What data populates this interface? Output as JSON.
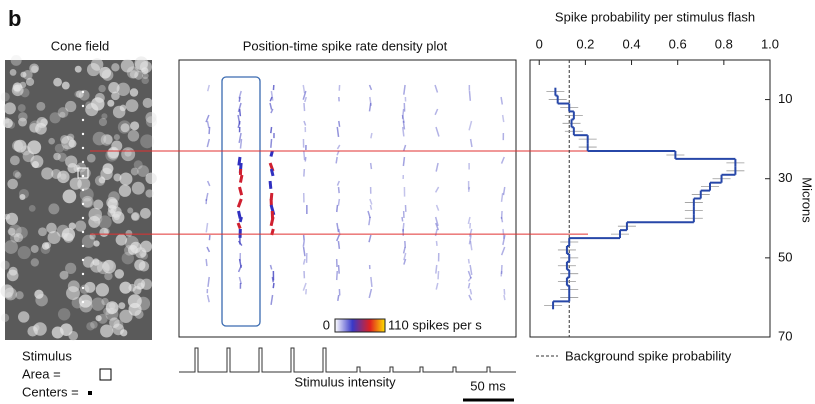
{
  "panel_label": "b",
  "cone_field": {
    "title": "Cone field"
  },
  "density_plot": {
    "title": "Position-time spike rate density plot",
    "colorbar_ticks": [
      0,
      {
        "value": 110,
        "label": "110 spikes per s"
      }
    ]
  },
  "stimulus": {
    "title": "Stimulus",
    "area": "Area =",
    "centers": "Centers =",
    "trace_label": "Stimulus intensity",
    "scale_bar": "50 ms"
  },
  "chart_data": {
    "type": "step",
    "title": "Spike probability per stimulus flash",
    "y_label": "Microns",
    "positions": [
      8,
      10,
      12,
      14,
      16,
      18,
      20,
      22,
      24,
      26,
      28,
      30,
      32,
      34,
      36,
      38,
      40,
      42,
      44,
      46,
      48,
      50,
      52,
      54,
      56,
      58,
      60,
      62
    ],
    "values": [
      0.07,
      0.08,
      0.13,
      0.15,
      0.14,
      0.15,
      0.21,
      0.21,
      0.59,
      0.85,
      0.85,
      0.79,
      0.74,
      0.7,
      0.67,
      0.67,
      0.67,
      0.38,
      0.35,
      0.13,
      0.12,
      0.13,
      0.12,
      0.13,
      0.12,
      0.13,
      0.13,
      0.06
    ],
    "color": "#2747a8",
    "xlim": [
      -0.04,
      1.0
    ],
    "xticks": [
      0,
      0.2,
      0.4,
      0.6,
      0.8,
      {
        "value": 1,
        "label": "1.0"
      }
    ],
    "ylim": [
      0,
      70
    ],
    "yticks": [
      10,
      30,
      50,
      70
    ],
    "y_inverted": true,
    "background": 0.13,
    "background_label": "Background spike probability",
    "highlight_positions": [
      23,
      44
    ],
    "highlight_color": "#e03030"
  }
}
